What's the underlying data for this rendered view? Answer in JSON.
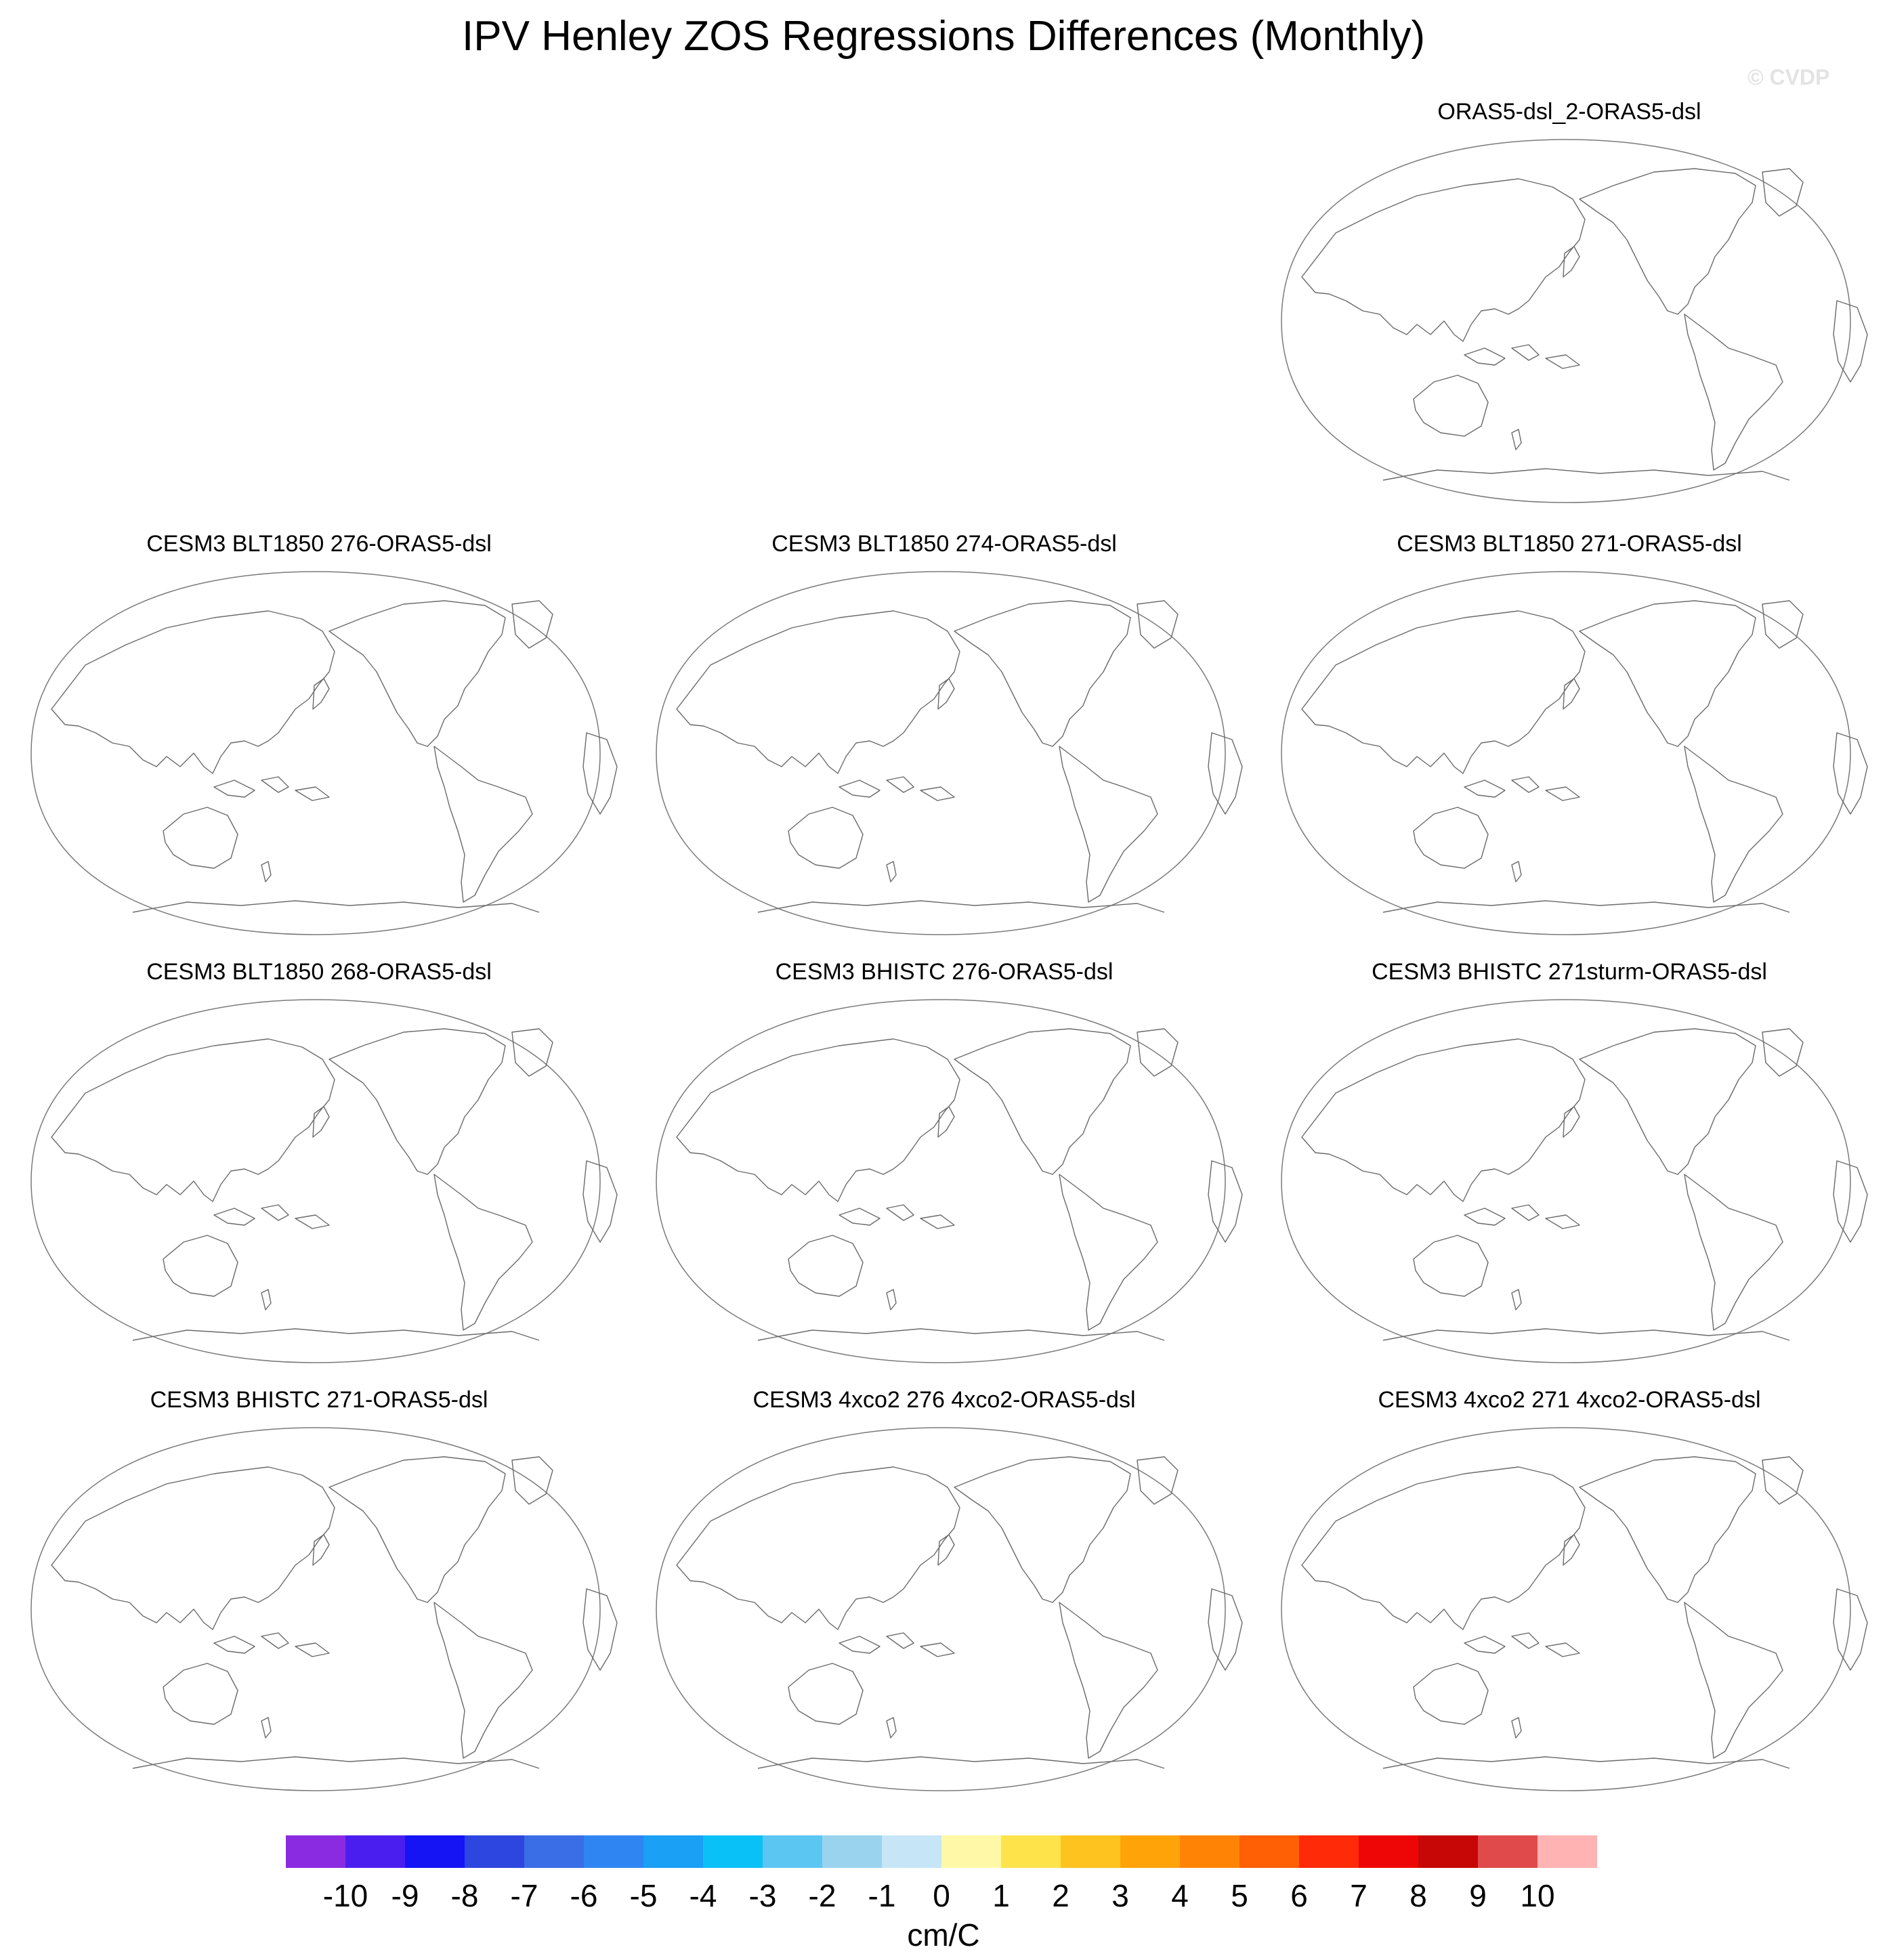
{
  "title": "IPV Henley ZOS Regressions Differences (Monthly)",
  "watermark": "© CVDP",
  "panels": [
    {
      "title": "ORAS5-dsl_2-ORAS5-dsl"
    },
    {
      "title": "CESM3 BLT1850 276-ORAS5-dsl"
    },
    {
      "title": "CESM3 BLT1850 274-ORAS5-dsl"
    },
    {
      "title": "CESM3 BLT1850 271-ORAS5-dsl"
    },
    {
      "title": "CESM3 BLT1850 268-ORAS5-dsl"
    },
    {
      "title": "CESM3 BHISTC 276-ORAS5-dsl"
    },
    {
      "title": "CESM3 BHISTC 271sturm-ORAS5-dsl"
    },
    {
      "title": "CESM3 BHISTC 271-ORAS5-dsl"
    },
    {
      "title": "CESM3 4xco2 276 4xco2-ORAS5-dsl"
    },
    {
      "title": "CESM3 4xco2 271 4xco2-ORAS5-dsl"
    }
  ],
  "colorbar": {
    "unit": "cm/C",
    "labels": [
      "-10",
      "-9",
      "-8",
      "-7",
      "-6",
      "-5",
      "-4",
      "-3",
      "-2",
      "-1",
      "0",
      "1",
      "2",
      "3",
      "4",
      "5",
      "6",
      "7",
      "8",
      "9",
      "10"
    ],
    "colors": [
      "#8a2be2",
      "#4b1ef0",
      "#1414f5",
      "#2e46e0",
      "#3a6ee6",
      "#2f86f2",
      "#1aa0f5",
      "#09c1f7",
      "#5cc6f2",
      "#9ad3ee",
      "#c6e6f8",
      "#fff8a6",
      "#ffe34a",
      "#ffc31f",
      "#ffa308",
      "#ff8405",
      "#ff5f05",
      "#ff2a08",
      "#ee0606",
      "#c70606",
      "#e04a4a",
      "#ffb3b3"
    ]
  }
}
